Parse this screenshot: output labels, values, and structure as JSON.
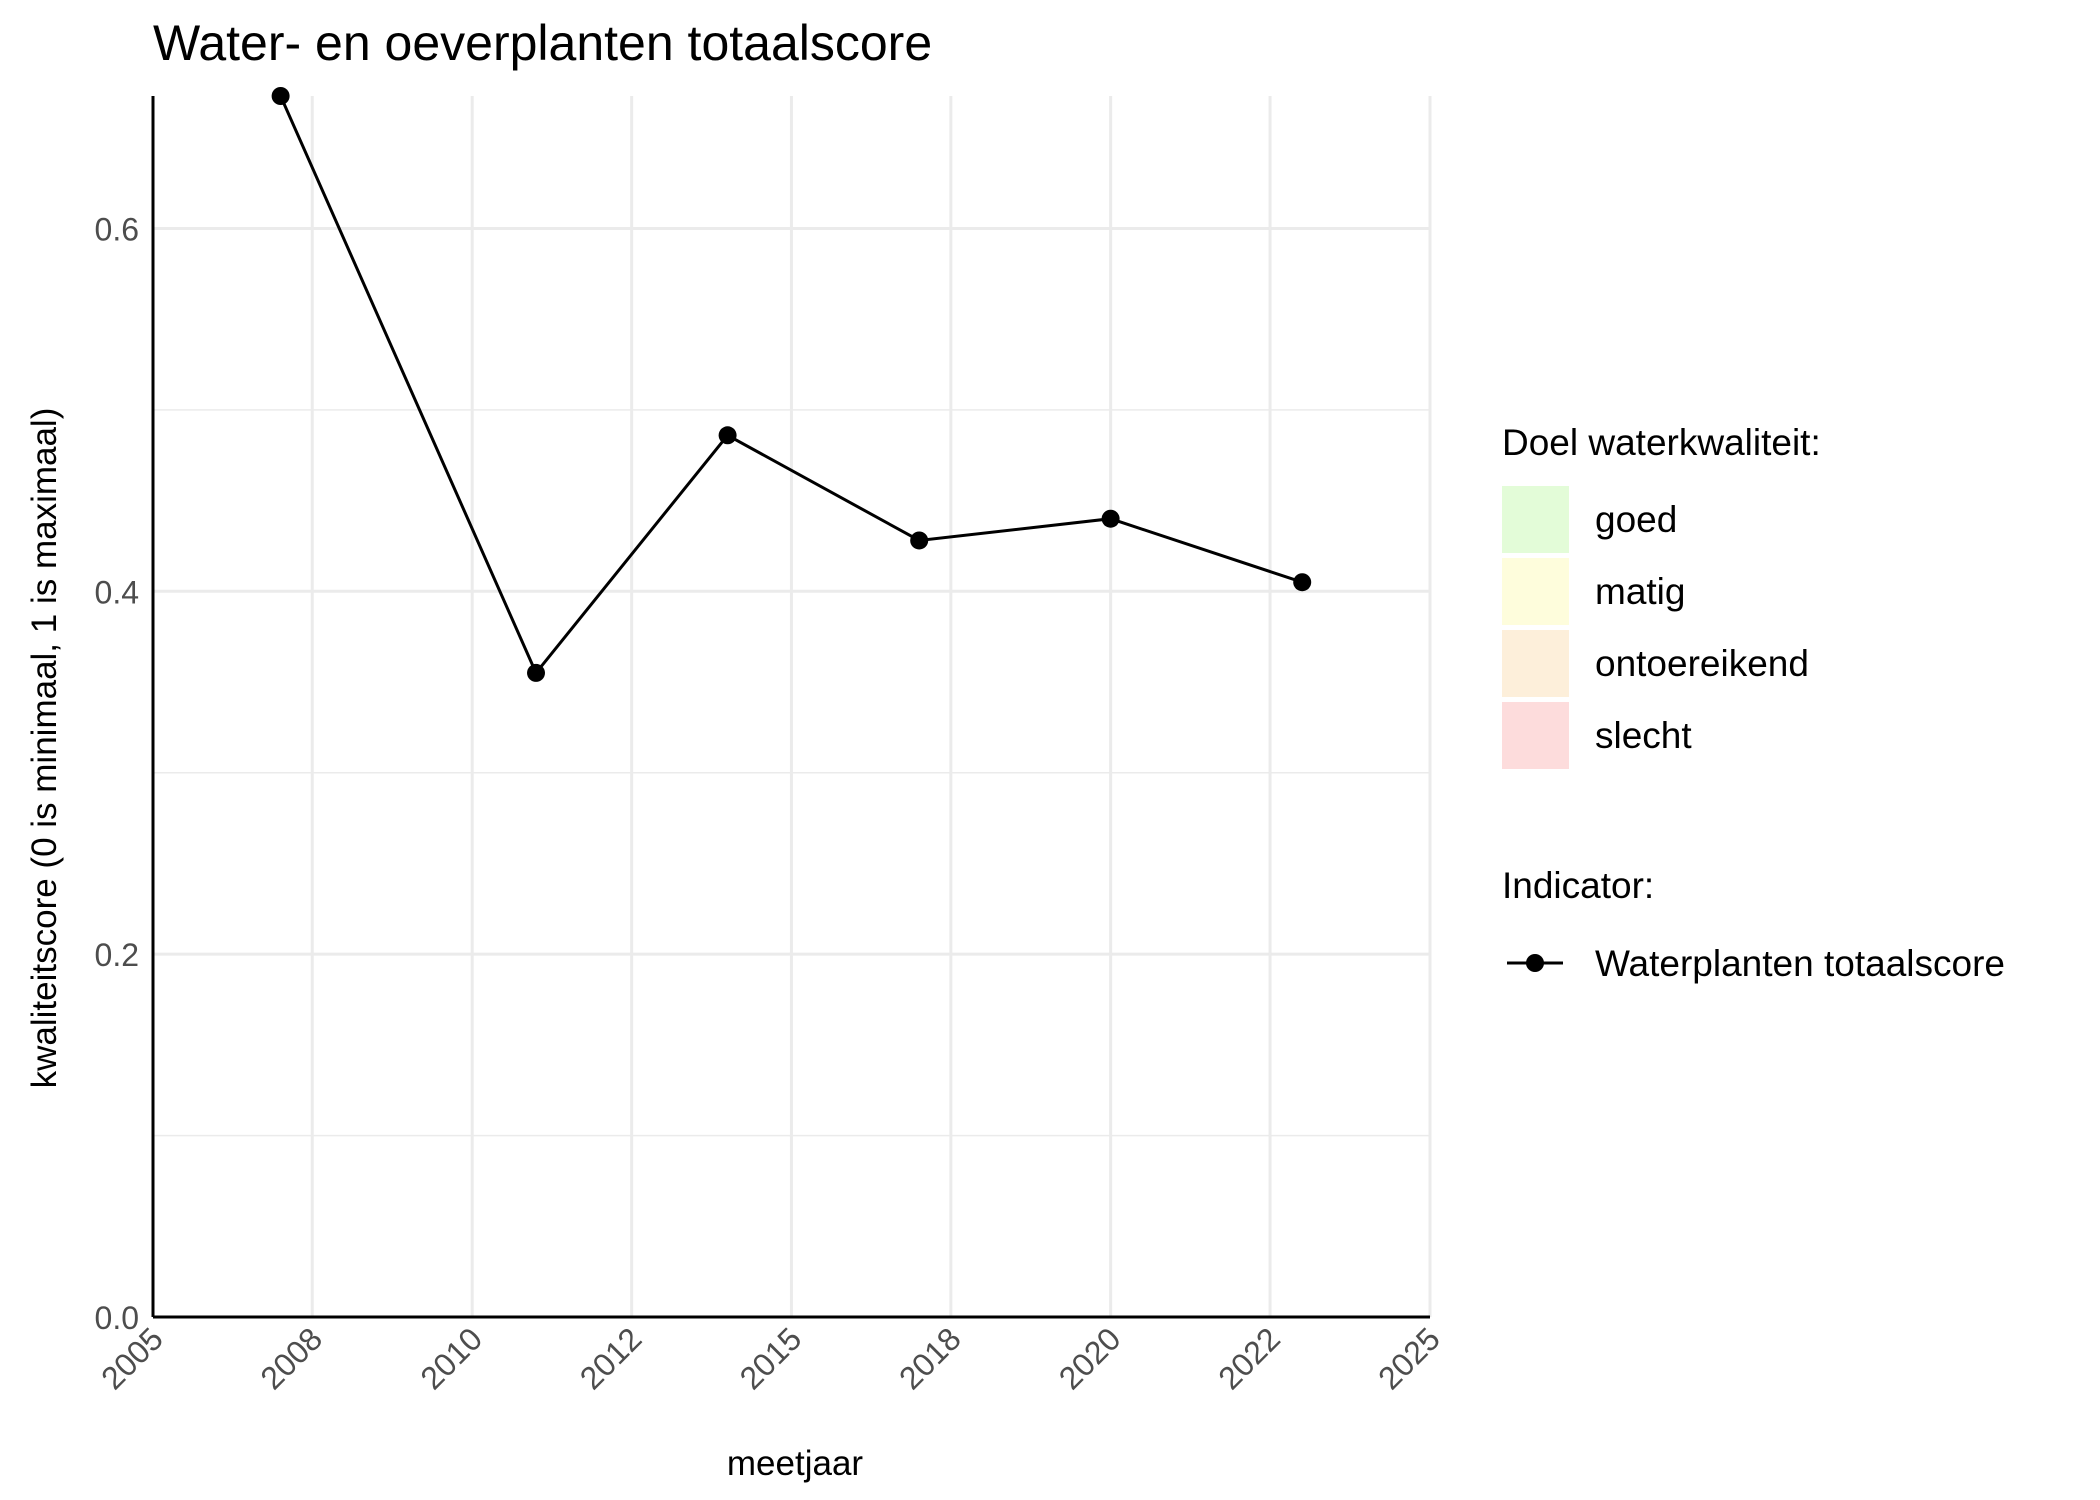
{
  "chart_data": {
    "type": "line",
    "title": "Water- en oeverplanten totaalscore",
    "xlabel": "meetjaar",
    "ylabel": "kwaliteitscore (0 is minimaal, 1 is maximaal)",
    "xlim": [
      "2005-01-01",
      "2025-01-01"
    ],
    "ylim": [
      0,
      0.673
    ],
    "x_ticks": [
      "2005-01-01",
      "2007-07-01",
      "2010-01-01",
      "2012-07-01",
      "2015-01-01",
      "2017-07-01",
      "2020-01-01",
      "2022-07-01",
      "2025-01-01"
    ],
    "x_tick_labels": [
      "2005",
      "2008",
      "2010",
      "2012",
      "2015",
      "2018",
      "2020",
      "2022",
      "2025"
    ],
    "y_ticks": [
      0,
      0.2,
      0.4,
      0.6
    ],
    "y_tick_labels": [
      "0.0",
      "0.2",
      "0.4",
      "0.6"
    ],
    "grid": true,
    "series": [
      {
        "name": "Waterplanten totaalscore",
        "color": "#000000",
        "x": [
          "2007-01-01",
          "2011-01-01",
          "2014-01-01",
          "2017-01-01",
          "2020-01-01",
          "2023-01-01"
        ],
        "y": [
          0.673,
          0.355,
          0.486,
          0.428,
          0.44,
          0.405
        ]
      }
    ],
    "legend": {
      "placement": "right",
      "quality_title": "Doel waterkwaliteit:",
      "quality_classes": [
        {
          "label": "goed",
          "color": "#e3fcd8"
        },
        {
          "label": "matig",
          "color": "#fefddc"
        },
        {
          "label": "ontoereikend",
          "color": "#fdefda"
        },
        {
          "label": "slecht",
          "color": "#fddcdc"
        }
      ],
      "indicator_title": "Indicator:"
    }
  }
}
